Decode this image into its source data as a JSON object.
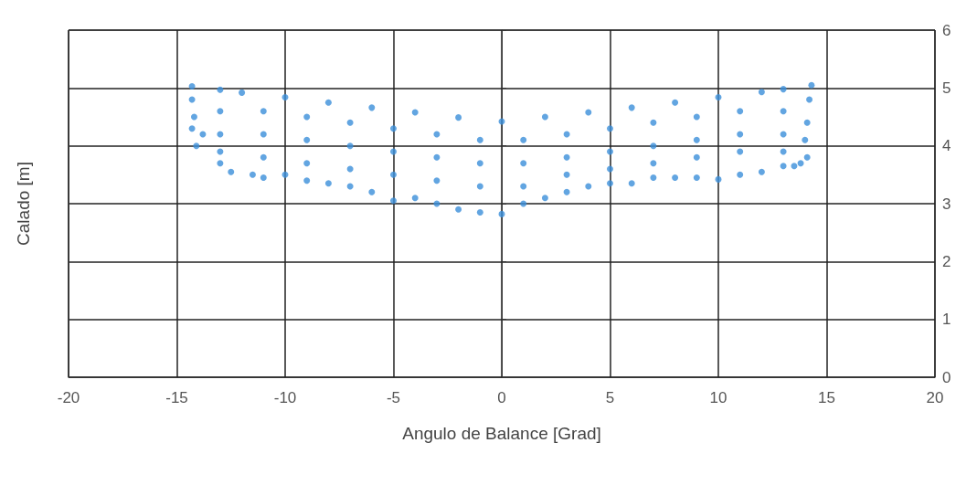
{
  "chart_data": {
    "type": "scatter",
    "xlabel": "Angulo de Balance [Grad]",
    "ylabel": "Calado [m]",
    "color": "#3b8fd9",
    "marker": "circle",
    "grid": true,
    "xlim": [
      -20,
      20
    ],
    "xticks": [
      -20,
      -15,
      -10,
      -5,
      0,
      5,
      10,
      15,
      20
    ],
    "ylim": [
      0,
      6
    ],
    "yticks": [
      0,
      1,
      2,
      3,
      4,
      5,
      6
    ],
    "x": [
      -14.3,
      -13,
      -12,
      -10,
      -8,
      -6,
      -4,
      -2,
      0,
      2,
      4,
      6,
      8,
      10,
      12,
      13,
      14.3,
      -14.3,
      -14.2,
      -14.3,
      -14.1,
      -13.8,
      14.2,
      14.1,
      14,
      14.1,
      13.8,
      13.5,
      -13,
      -12.5,
      -11.5,
      -11,
      -10,
      -9,
      -8,
      -7,
      -6,
      -5,
      -4,
      -3,
      -2,
      -1,
      0,
      1,
      2,
      3,
      4,
      5,
      6,
      7,
      8,
      9,
      10,
      11,
      12,
      13,
      -13,
      -13,
      -13,
      -11,
      -11,
      -11,
      -9,
      -9,
      -9,
      -7,
      -7,
      -7,
      -5,
      -5,
      -5,
      -3,
      -3,
      -3,
      -1,
      -1,
      -1,
      1,
      1,
      1,
      3,
      3,
      3,
      5,
      5,
      5,
      7,
      7,
      7,
      9,
      9,
      9,
      11,
      11,
      11,
      13,
      13,
      13
    ],
    "values": [
      5.03,
      4.97,
      4.92,
      4.84,
      4.75,
      4.66,
      4.58,
      4.49,
      4.42,
      4.5,
      4.58,
      4.66,
      4.75,
      4.84,
      4.93,
      4.98,
      5.05,
      4.8,
      4.5,
      4.3,
      4.0,
      4.2,
      4.8,
      4.4,
      4.1,
      3.8,
      3.7,
      3.65,
      3.7,
      3.55,
      3.5,
      3.45,
      3.5,
      3.4,
      3.35,
      3.3,
      3.2,
      3.05,
      3.1,
      3.0,
      2.9,
      2.85,
      2.82,
      3.0,
      3.1,
      3.2,
      3.3,
      3.35,
      3.35,
      3.45,
      3.45,
      3.45,
      3.42,
      3.5,
      3.55,
      3.65,
      4.6,
      4.2,
      3.9,
      4.6,
      4.2,
      3.8,
      4.5,
      4.1,
      3.7,
      4.4,
      4.0,
      3.6,
      4.3,
      3.9,
      3.5,
      4.2,
      3.8,
      3.4,
      4.1,
      3.7,
      3.3,
      4.1,
      3.7,
      3.3,
      4.2,
      3.8,
      3.5,
      4.3,
      3.9,
      3.6,
      4.4,
      4.0,
      3.7,
      4.5,
      4.1,
      3.8,
      4.6,
      4.2,
      3.9,
      4.6,
      4.2,
      3.9
    ]
  }
}
